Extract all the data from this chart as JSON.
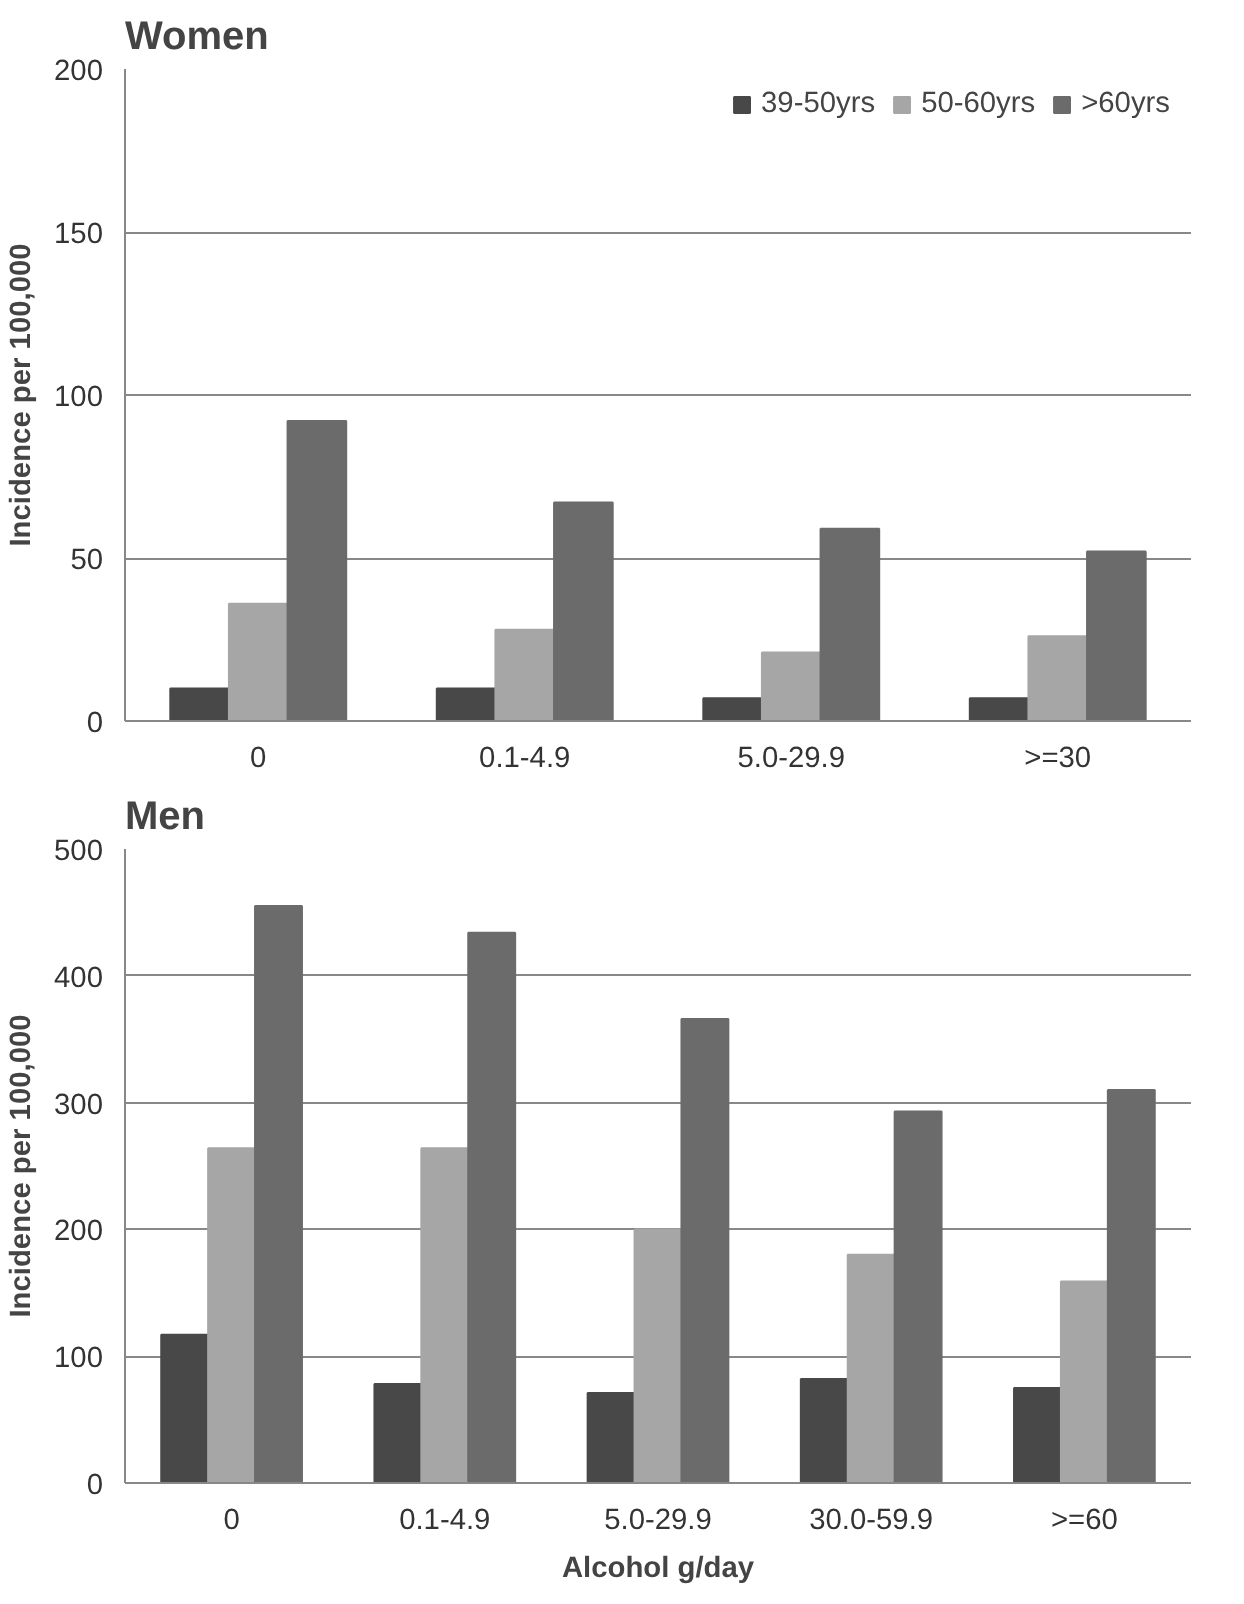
{
  "chart_data": [
    {
      "type": "bar",
      "title": "Women",
      "ylabel": "Incidence per 100,000",
      "categories": [
        "0",
        "0.1-4.9",
        "5.0-29.9",
        ">=30"
      ],
      "series": [
        {
          "name": "39-50yrs",
          "color": "#484848",
          "values": [
            10,
            10,
            7,
            7
          ]
        },
        {
          "name": "50-60yrs",
          "color": "#a6a6a6",
          "values": [
            36,
            28,
            21,
            26
          ]
        },
        {
          "name": ">60yrs",
          "color": "#6b6b6b",
          "values": [
            92,
            67,
            59,
            52
          ]
        }
      ],
      "ylim": [
        0,
        200
      ],
      "yticks": [
        0,
        50,
        100,
        150,
        200
      ],
      "grid": "y",
      "legend": "top right"
    },
    {
      "type": "bar",
      "title": "Men",
      "ylabel": "Incidence per 100,000",
      "xlabel": "Alcohol g/day",
      "categories": [
        "0",
        "0.1-4.9",
        "5.0-29.9",
        "30.0-59.9",
        ">=60"
      ],
      "series": [
        {
          "color": "#484848",
          "values": [
            117,
            78,
            71,
            82,
            75
          ]
        },
        {
          "color": "#a6a6a6",
          "values": [
            264,
            264,
            200,
            180,
            159
          ]
        },
        {
          "color": "#6b6b6b",
          "values": [
            455,
            434,
            366,
            293,
            310
          ]
        }
      ],
      "ylim": [
        0,
        500
      ],
      "yticks": [
        0,
        100,
        200,
        300,
        400,
        500
      ],
      "grid": "y",
      "legend": false
    }
  ]
}
